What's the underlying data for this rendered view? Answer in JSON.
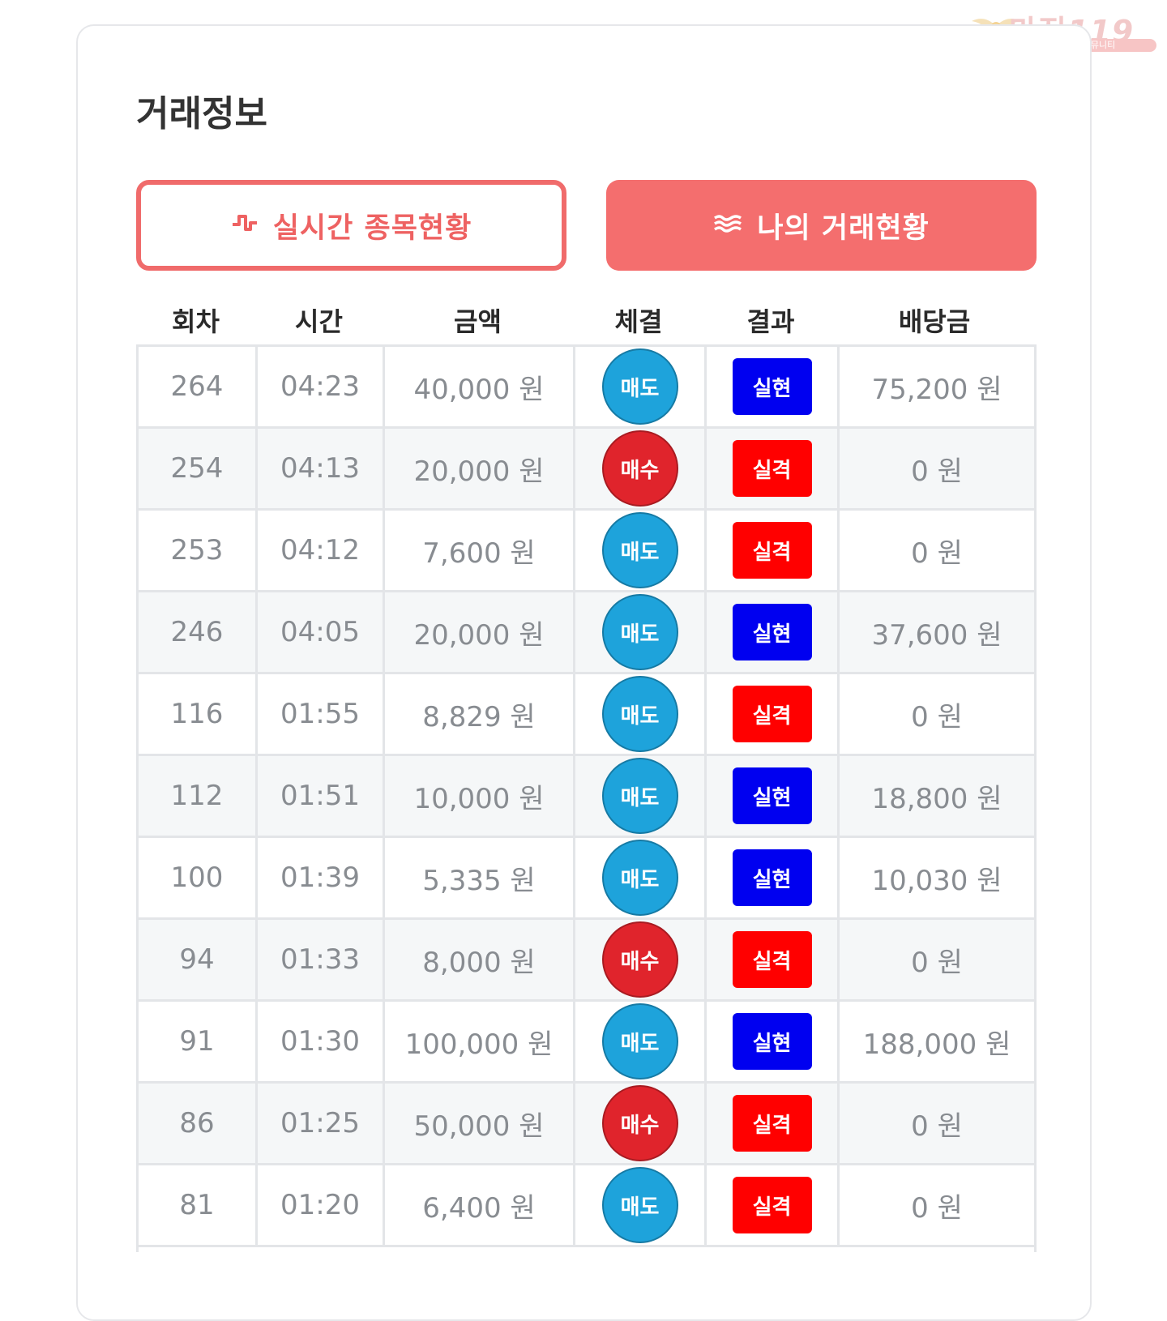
{
  "watermark": {
    "logo_text": "마진",
    "logo_number": "119",
    "tagline": "마진거래 검증전문 커뮤니티"
  },
  "page": {
    "title": "거래정보"
  },
  "tabs": [
    {
      "label": "실시간 종목현황",
      "icon": "pulse-icon",
      "active": false
    },
    {
      "label": "나의 거래현황",
      "icon": "waves-icon",
      "active": true
    }
  ],
  "table": {
    "headers": [
      "회차",
      "시간",
      "금액",
      "체결",
      "결과",
      "배당금"
    ],
    "rows": [
      {
        "round": "264",
        "time": "04:23",
        "amount": "40,000 원",
        "execution": "매도",
        "result": "실현",
        "payout": "75,200 원"
      },
      {
        "round": "254",
        "time": "04:13",
        "amount": "20,000 원",
        "execution": "매수",
        "result": "실격",
        "payout": "0 원"
      },
      {
        "round": "253",
        "time": "04:12",
        "amount": "7,600 원",
        "execution": "매도",
        "result": "실격",
        "payout": "0 원"
      },
      {
        "round": "246",
        "time": "04:05",
        "amount": "20,000 원",
        "execution": "매도",
        "result": "실현",
        "payout": "37,600 원"
      },
      {
        "round": "116",
        "time": "01:55",
        "amount": "8,829 원",
        "execution": "매도",
        "result": "실격",
        "payout": "0 원"
      },
      {
        "round": "112",
        "time": "01:51",
        "amount": "10,000 원",
        "execution": "매도",
        "result": "실현",
        "payout": "18,800 원"
      },
      {
        "round": "100",
        "time": "01:39",
        "amount": "5,335 원",
        "execution": "매도",
        "result": "실현",
        "payout": "10,030 원"
      },
      {
        "round": "94",
        "time": "01:33",
        "amount": "8,000 원",
        "execution": "매수",
        "result": "실격",
        "payout": "0 원"
      },
      {
        "round": "91",
        "time": "01:30",
        "amount": "100,000 원",
        "execution": "매도",
        "result": "실현",
        "payout": "188,000 원"
      },
      {
        "round": "86",
        "time": "01:25",
        "amount": "50,000 원",
        "execution": "매수",
        "result": "실격",
        "payout": "0 원"
      },
      {
        "round": "81",
        "time": "01:20",
        "amount": "6,400 원",
        "execution": "매도",
        "result": "실격",
        "payout": "0 원"
      }
    ]
  },
  "colors": {
    "accent": "#f46e6e",
    "sell": "#1ea3db",
    "buy": "#e0242c",
    "hit": "#0000f0",
    "miss": "#ff0000"
  }
}
